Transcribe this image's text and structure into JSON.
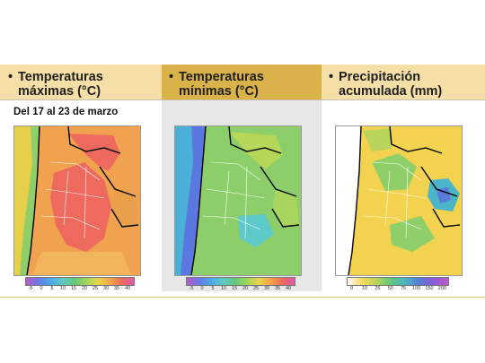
{
  "panels": [
    {
      "title_line1": "Temperaturas",
      "title_line2": "máximas (°C)",
      "colorbar": {
        "ticks": [
          "-5",
          "0",
          "5",
          "10",
          "15",
          "20",
          "25",
          "30",
          "35",
          "40"
        ]
      }
    },
    {
      "title_line1": "Temperaturas",
      "title_line2": "mínimas (°C)",
      "colorbar": {
        "ticks": [
          "-5",
          "0",
          "5",
          "10",
          "15",
          "20",
          "25",
          "30",
          "35",
          "40"
        ]
      }
    },
    {
      "title_line1": "Precipitación",
      "title_line2": "acumulada (mm)",
      "colorbar": {
        "ticks": [
          "0",
          "10",
          "25",
          "50",
          "75",
          "100",
          "150",
          "200"
        ]
      }
    }
  ],
  "subtitle": "Del 17 al 23 de marzo",
  "bullet": "•",
  "colors": {
    "band_light": "#f6dfa6",
    "band_dark": "#d9b24a",
    "panel_gray": "#e7e7e7"
  },
  "chart_data": [
    {
      "type": "heatmap",
      "title": "Temperaturas máximas (°C)",
      "variable": "max temperature",
      "unit": "°C",
      "scale": [
        -5,
        40
      ],
      "colorbar_ticks": [
        -5,
        0,
        5,
        10,
        15,
        20,
        25,
        30,
        35,
        40
      ],
      "regions": [
        {
          "area": "north",
          "approx_value": 35
        },
        {
          "area": "center",
          "approx_value": 33
        },
        {
          "area": "andes",
          "approx_value": 15
        },
        {
          "area": "south",
          "approx_value": 20
        }
      ]
    },
    {
      "type": "heatmap",
      "title": "Temperaturas mínimas (°C)",
      "variable": "min temperature",
      "unit": "°C",
      "scale": [
        -5,
        40
      ],
      "colorbar_ticks": [
        -5,
        0,
        5,
        10,
        15,
        20,
        25,
        30,
        35,
        40
      ],
      "regions": [
        {
          "area": "north",
          "approx_value": 18
        },
        {
          "area": "center",
          "approx_value": 13
        },
        {
          "area": "andes",
          "approx_value": 0
        },
        {
          "area": "south",
          "approx_value": 10
        }
      ]
    },
    {
      "type": "heatmap",
      "title": "Precipitación acumulada (mm)",
      "variable": "accumulated precipitation",
      "unit": "mm",
      "scale": [
        0,
        200
      ],
      "colorbar_ticks": [
        0,
        10,
        25,
        50,
        75,
        100,
        150,
        200
      ],
      "regions": [
        {
          "area": "north",
          "approx_value": 25
        },
        {
          "area": "center",
          "approx_value": 40
        },
        {
          "area": "northeast",
          "approx_value": 100
        },
        {
          "area": "andes",
          "approx_value": 0
        }
      ]
    }
  ]
}
